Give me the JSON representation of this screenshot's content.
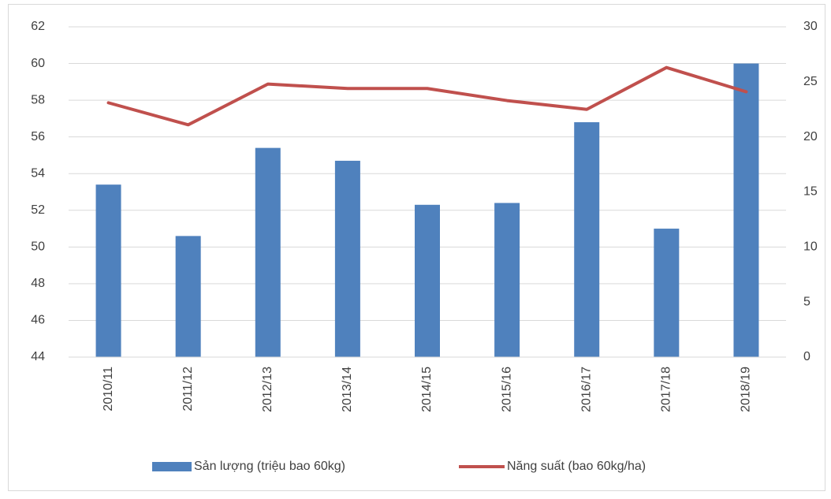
{
  "chart_data": {
    "type": "bar_line",
    "categories": [
      "2010/11",
      "2011/12",
      "2012/13",
      "2013/14",
      "2014/15",
      "2015/16",
      "2016/17",
      "2017/18",
      "2018/19"
    ],
    "series": [
      {
        "name": "Sản lượng (triệu bao 60kg)",
        "type": "bar",
        "color": "#4f81bd",
        "axis": "y",
        "values": [
          53.4,
          50.6,
          55.4,
          54.7,
          52.3,
          52.4,
          56.8,
          51.0,
          60.0
        ]
      },
      {
        "name": "Năng suất (bao 60kg/ha)",
        "type": "line",
        "color": "#c0504d",
        "axis": "y2",
        "values": [
          23.1,
          21.1,
          24.8,
          24.4,
          24.4,
          23.3,
          22.5,
          26.3,
          24.1
        ]
      }
    ],
    "ylim": [
      44,
      62
    ],
    "yticks": [
      44,
      46,
      48,
      50,
      52,
      54,
      56,
      58,
      60,
      62
    ],
    "y2lim": [
      0,
      30
    ],
    "y2ticks": [
      0,
      5,
      10,
      15,
      20,
      25,
      30
    ],
    "grid": true,
    "legend": "bottom"
  }
}
